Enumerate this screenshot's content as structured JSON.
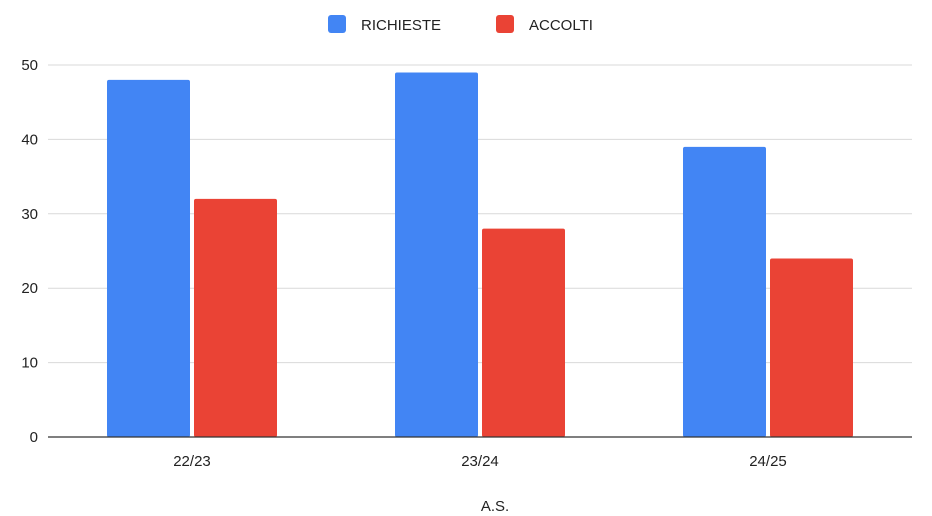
{
  "chart_data": {
    "type": "bar",
    "categories": [
      "22/23",
      "23/24",
      "24/25"
    ],
    "series": [
      {
        "name": "RICHIESTE",
        "values": [
          48,
          49,
          39
        ],
        "color": "#4285f4"
      },
      {
        "name": "ACCOLTI",
        "values": [
          32,
          28,
          24
        ],
        "color": "#ea4335"
      }
    ],
    "xlabel": "A.S.",
    "ylabel": "",
    "ylim": [
      0,
      50
    ],
    "yticks": [
      0,
      10,
      20,
      30,
      40,
      50
    ],
    "grid": true,
    "legend_position": "top"
  }
}
